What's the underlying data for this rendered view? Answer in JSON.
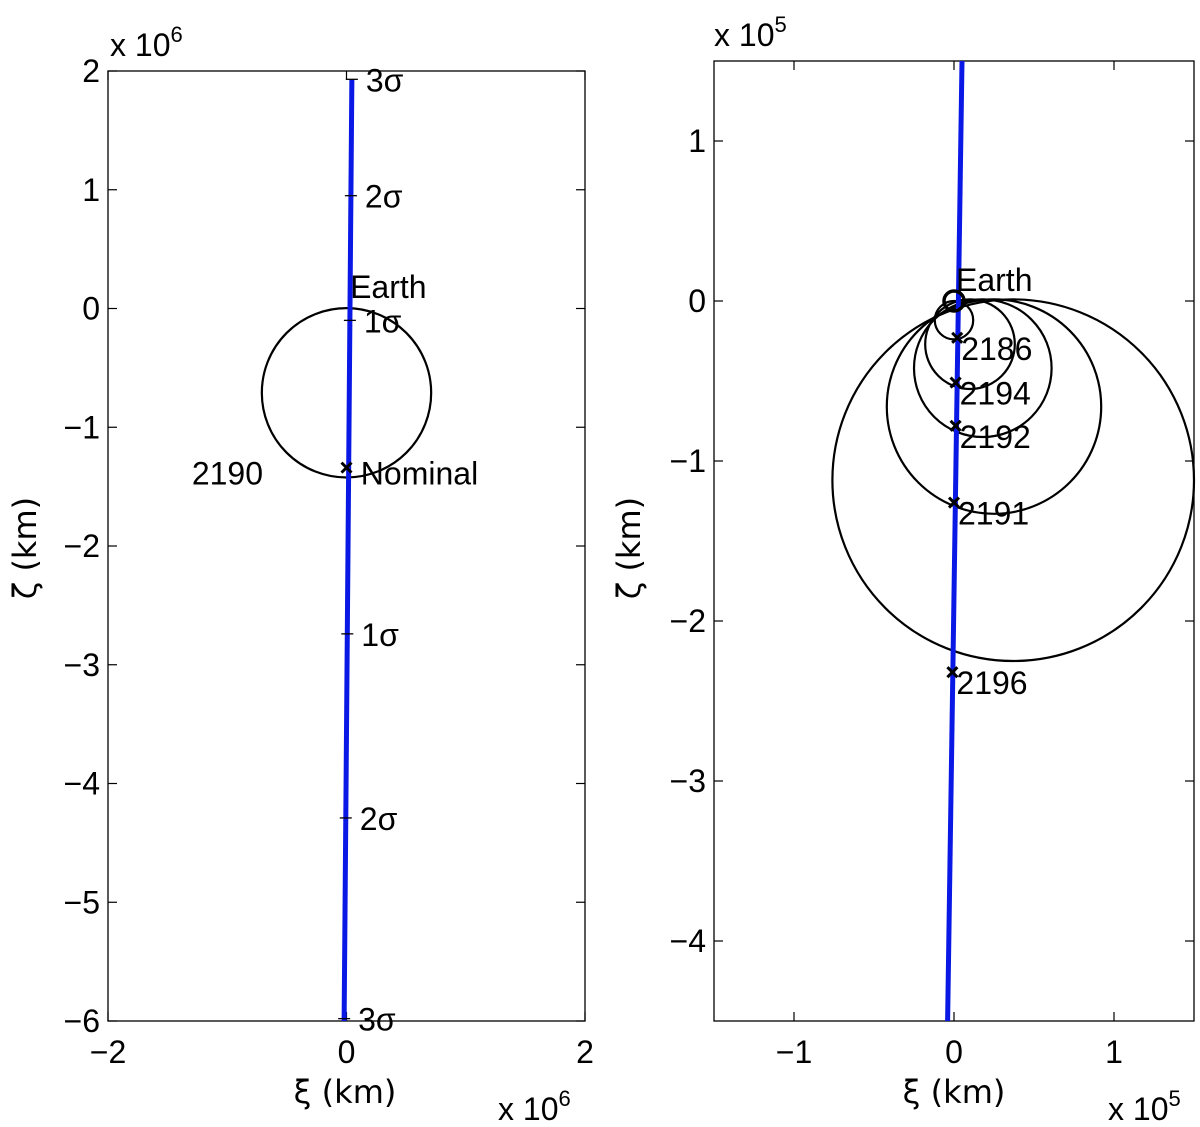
{
  "chart_data": [
    {
      "type": "line",
      "xlabel": "ξ (km)",
      "ylabel": "ζ (km)",
      "x_exponent_label": "x 10",
      "x_exponent": "6",
      "y_exponent_label": "x 10",
      "y_exponent": "6",
      "xlim": [
        -2000000,
        2000000
      ],
      "ylim": [
        -6000000,
        2000000
      ],
      "xticks": [
        -2000000,
        0,
        2000000
      ],
      "xtick_labels": [
        "−2",
        "0",
        "2"
      ],
      "yticks": [
        -6000000,
        -5000000,
        -4000000,
        -3000000,
        -2000000,
        -1000000,
        0,
        1000000,
        2000000
      ],
      "ytick_labels": [
        "−6",
        "−5",
        "−4",
        "−3",
        "−2",
        "−1",
        "0",
        "1",
        "2"
      ],
      "line_color": "#0a18e6",
      "series": [
        {
          "x": [
            -20000,
            45000
          ],
          "y": [
            -6000000,
            1930000
          ]
        }
      ],
      "circles": [
        {
          "cx": 0,
          "cy": -710000,
          "r": 710000
        }
      ],
      "markers": [
        {
          "x": 0,
          "y": -1340000
        }
      ],
      "sigma_ticks": [
        {
          "x": 0,
          "y": 1930000,
          "label": "3σ"
        },
        {
          "x": 0,
          "y": 950000,
          "label": "2σ"
        },
        {
          "x": 0,
          "y": -100000,
          "label": "1σ"
        },
        {
          "x": 0,
          "y": -2740000,
          "label": "1σ"
        },
        {
          "x": 0,
          "y": -4290000,
          "label": "2σ"
        },
        {
          "x": 0,
          "y": -5980000,
          "label": "3σ"
        }
      ],
      "annotations": [
        {
          "x": 30000,
          "y": 180000,
          "text": "Earth",
          "anchor": "start"
        },
        {
          "x": 120000,
          "y": -1390000,
          "text": "Nominal",
          "anchor": "start"
        },
        {
          "x": -700000,
          "y": -1390000,
          "text": "2190",
          "anchor": "end"
        }
      ]
    },
    {
      "type": "line",
      "xlabel": "ξ (km)",
      "ylabel": "ζ (km)",
      "x_exponent_label": "x 10",
      "x_exponent": "5",
      "y_exponent_label": "x 10",
      "y_exponent": "5",
      "xlim": [
        -150000,
        150000
      ],
      "ylim": [
        -450000,
        150000
      ],
      "xticks": [
        -100000,
        0,
        100000
      ],
      "xtick_labels": [
        "−1",
        "0",
        "1"
      ],
      "yticks": [
        -400000,
        -300000,
        -200000,
        -100000,
        0,
        100000
      ],
      "ytick_labels": [
        "−4",
        "−3",
        "−2",
        "−1",
        "0",
        "1"
      ],
      "line_color": "#0a18e6",
      "series": [
        {
          "x": [
            -4000,
            5000
          ],
          "y": [
            -450000,
            150000
          ]
        }
      ],
      "circles": [
        {
          "cx": 0,
          "cy": -12000,
          "r": 12000
        },
        {
          "cx": 10000,
          "cy": -27000,
          "r": 28000
        },
        {
          "cx": 18000,
          "cy": -42000,
          "r": 43000
        },
        {
          "cx": 25000,
          "cy": -66000,
          "r": 67000
        },
        {
          "cx": 37000,
          "cy": -112000,
          "r": 113000
        }
      ],
      "earth": {
        "x": 0,
        "y": 0,
        "label": "Earth"
      },
      "markers": [
        {
          "x": 2000,
          "y": -23000,
          "label": "2186"
        },
        {
          "x": 1000,
          "y": -51000,
          "label": "2194"
        },
        {
          "x": 1000,
          "y": -78000,
          "label": "2192"
        },
        {
          "x": 0,
          "y": -126000,
          "label": "2191"
        },
        {
          "x": -1000,
          "y": -232000,
          "label": "2196"
        }
      ]
    }
  ]
}
